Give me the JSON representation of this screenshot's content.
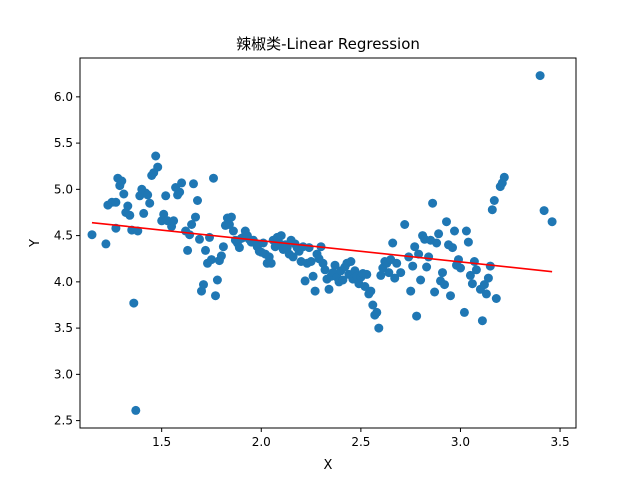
{
  "chart_data": {
    "type": "scatter",
    "title": "辣椒类-Linear Regression",
    "xlabel": "X",
    "ylabel": "Y",
    "xlim": [
      1.09,
      3.58
    ],
    "ylim": [
      2.42,
      6.42
    ],
    "xticks": [
      1.5,
      2.0,
      2.5,
      3.0,
      3.5
    ],
    "yticks": [
      2.5,
      3.0,
      3.5,
      4.0,
      4.5,
      5.0,
      5.5,
      6.0
    ],
    "xtick_labels": [
      "1.5",
      "2.0",
      "2.5",
      "3.0",
      "3.5"
    ],
    "ytick_labels": [
      "2.5",
      "3.0",
      "3.5",
      "4.0",
      "4.5",
      "5.0",
      "5.5",
      "6.0"
    ],
    "grid": false,
    "legend": false,
    "colors": {
      "points": "#1f77b4",
      "regression_line": "#ff0000"
    },
    "regression_line": {
      "x": [
        1.15,
        3.46
      ],
      "y": [
        4.64,
        4.11
      ]
    },
    "points": [
      [
        1.15,
        4.51
      ],
      [
        1.22,
        4.41
      ],
      [
        1.23,
        4.83
      ],
      [
        1.25,
        4.86
      ],
      [
        1.27,
        4.58
      ],
      [
        1.27,
        4.86
      ],
      [
        1.28,
        5.12
      ],
      [
        1.29,
        5.04
      ],
      [
        1.3,
        5.09
      ],
      [
        1.31,
        4.95
      ],
      [
        1.32,
        4.75
      ],
      [
        1.33,
        4.82
      ],
      [
        1.34,
        4.72
      ],
      [
        1.35,
        4.56
      ],
      [
        1.36,
        3.77
      ],
      [
        1.37,
        2.61
      ],
      [
        1.38,
        4.55
      ],
      [
        1.39,
        4.93
      ],
      [
        1.4,
        5.0
      ],
      [
        1.41,
        4.74
      ],
      [
        1.42,
        4.96
      ],
      [
        1.43,
        4.94
      ],
      [
        1.44,
        4.85
      ],
      [
        1.45,
        5.15
      ],
      [
        1.46,
        5.18
      ],
      [
        1.47,
        5.36
      ],
      [
        1.48,
        5.24
      ],
      [
        1.5,
        4.66
      ],
      [
        1.51,
        4.73
      ],
      [
        1.52,
        4.93
      ],
      [
        1.53,
        4.66
      ],
      [
        1.55,
        4.6
      ],
      [
        1.56,
        4.66
      ],
      [
        1.57,
        5.02
      ],
      [
        1.58,
        4.94
      ],
      [
        1.59,
        4.97
      ],
      [
        1.6,
        5.07
      ],
      [
        1.62,
        4.55
      ],
      [
        1.63,
        4.34
      ],
      [
        1.64,
        4.51
      ],
      [
        1.65,
        4.62
      ],
      [
        1.66,
        5.06
      ],
      [
        1.67,
        4.7
      ],
      [
        1.68,
        4.88
      ],
      [
        1.69,
        4.46
      ],
      [
        1.7,
        3.9
      ],
      [
        1.71,
        3.97
      ],
      [
        1.72,
        4.34
      ],
      [
        1.73,
        4.2
      ],
      [
        1.74,
        4.48
      ],
      [
        1.75,
        4.24
      ],
      [
        1.76,
        5.12
      ],
      [
        1.77,
        3.85
      ],
      [
        1.78,
        4.02
      ],
      [
        1.79,
        4.23
      ],
      [
        1.8,
        4.28
      ],
      [
        1.81,
        4.38
      ],
      [
        1.82,
        4.61
      ],
      [
        1.83,
        4.69
      ],
      [
        1.84,
        4.62
      ],
      [
        1.85,
        4.7
      ],
      [
        1.86,
        4.55
      ],
      [
        1.87,
        4.45
      ],
      [
        1.88,
        4.42
      ],
      [
        1.89,
        4.37
      ],
      [
        1.9,
        4.47
      ],
      [
        1.91,
        4.48
      ],
      [
        1.92,
        4.55
      ],
      [
        1.93,
        4.5
      ],
      [
        1.94,
        4.46
      ],
      [
        1.95,
        4.43
      ],
      [
        1.96,
        4.45
      ],
      [
        1.97,
        4.42
      ],
      [
        1.98,
        4.38
      ],
      [
        1.99,
        4.33
      ],
      [
        2.0,
        4.32
      ],
      [
        2.01,
        4.42
      ],
      [
        2.02,
        4.3
      ],
      [
        2.03,
        4.2
      ],
      [
        2.04,
        4.27
      ],
      [
        2.05,
        4.2
      ],
      [
        2.06,
        4.45
      ],
      [
        2.07,
        4.38
      ],
      [
        2.08,
        4.48
      ],
      [
        2.09,
        4.42
      ],
      [
        2.1,
        4.5
      ],
      [
        2.11,
        4.35
      ],
      [
        2.12,
        4.4
      ],
      [
        2.13,
        4.37
      ],
      [
        2.14,
        4.3
      ],
      [
        2.15,
        4.45
      ],
      [
        2.16,
        4.27
      ],
      [
        2.17,
        4.41
      ],
      [
        2.18,
        4.37
      ],
      [
        2.19,
        4.33
      ],
      [
        2.2,
        4.22
      ],
      [
        2.21,
        4.38
      ],
      [
        2.22,
        4.01
      ],
      [
        2.23,
        4.2
      ],
      [
        2.24,
        4.37
      ],
      [
        2.25,
        4.22
      ],
      [
        2.26,
        4.06
      ],
      [
        2.27,
        3.9
      ],
      [
        2.28,
        4.3
      ],
      [
        2.29,
        4.25
      ],
      [
        2.3,
        4.38
      ],
      [
        2.31,
        4.2
      ],
      [
        2.32,
        4.13
      ],
      [
        2.33,
        4.03
      ],
      [
        2.34,
        3.92
      ],
      [
        2.35,
        4.06
      ],
      [
        2.36,
        4.1
      ],
      [
        2.37,
        4.18
      ],
      [
        2.38,
        4.05
      ],
      [
        2.39,
        4.0
      ],
      [
        2.4,
        4.12
      ],
      [
        2.41,
        4.02
      ],
      [
        2.42,
        4.16
      ],
      [
        2.43,
        4.2
      ],
      [
        2.44,
        4.08
      ],
      [
        2.45,
        4.22
      ],
      [
        2.46,
        4.03
      ],
      [
        2.47,
        4.12
      ],
      [
        2.48,
        4.06
      ],
      [
        2.49,
        3.98
      ],
      [
        2.5,
        4.05
      ],
      [
        2.51,
        4.09
      ],
      [
        2.52,
        3.95
      ],
      [
        2.53,
        4.08
      ],
      [
        2.54,
        3.87
      ],
      [
        2.55,
        3.9
      ],
      [
        2.56,
        3.75
      ],
      [
        2.57,
        3.64
      ],
      [
        2.58,
        3.67
      ],
      [
        2.59,
        3.5
      ],
      [
        2.6,
        4.07
      ],
      [
        2.61,
        4.15
      ],
      [
        2.62,
        4.22
      ],
      [
        2.63,
        4.2
      ],
      [
        2.64,
        4.1
      ],
      [
        2.65,
        4.24
      ],
      [
        2.66,
        4.42
      ],
      [
        2.67,
        4.04
      ],
      [
        2.68,
        4.2
      ],
      [
        2.7,
        4.1
      ],
      [
        2.72,
        4.62
      ],
      [
        2.74,
        4.27
      ],
      [
        2.75,
        3.9
      ],
      [
        2.76,
        4.17
      ],
      [
        2.77,
        4.38
      ],
      [
        2.78,
        3.63
      ],
      [
        2.79,
        4.3
      ],
      [
        2.8,
        4.02
      ],
      [
        2.81,
        4.5
      ],
      [
        2.82,
        4.46
      ],
      [
        2.83,
        4.16
      ],
      [
        2.84,
        4.27
      ],
      [
        2.85,
        4.45
      ],
      [
        2.86,
        4.85
      ],
      [
        2.87,
        3.89
      ],
      [
        2.88,
        4.42
      ],
      [
        2.89,
        4.52
      ],
      [
        2.9,
        4.01
      ],
      [
        2.91,
        4.1
      ],
      [
        2.92,
        3.97
      ],
      [
        2.93,
        4.65
      ],
      [
        2.94,
        4.4
      ],
      [
        2.95,
        3.85
      ],
      [
        2.96,
        4.37
      ],
      [
        2.97,
        4.55
      ],
      [
        2.98,
        4.18
      ],
      [
        2.99,
        4.24
      ],
      [
        3.0,
        4.15
      ],
      [
        3.02,
        3.67
      ],
      [
        3.03,
        4.55
      ],
      [
        3.04,
        4.43
      ],
      [
        3.05,
        4.07
      ],
      [
        3.06,
        3.98
      ],
      [
        3.07,
        4.22
      ],
      [
        3.08,
        4.13
      ],
      [
        3.1,
        3.92
      ],
      [
        3.11,
        3.58
      ],
      [
        3.12,
        3.97
      ],
      [
        3.13,
        3.87
      ],
      [
        3.14,
        4.04
      ],
      [
        3.15,
        4.17
      ],
      [
        3.16,
        4.78
      ],
      [
        3.17,
        4.88
      ],
      [
        3.18,
        3.82
      ],
      [
        3.2,
        5.03
      ],
      [
        3.21,
        5.07
      ],
      [
        3.22,
        5.13
      ],
      [
        3.4,
        6.23
      ],
      [
        3.42,
        4.77
      ],
      [
        3.46,
        4.65
      ]
    ]
  }
}
